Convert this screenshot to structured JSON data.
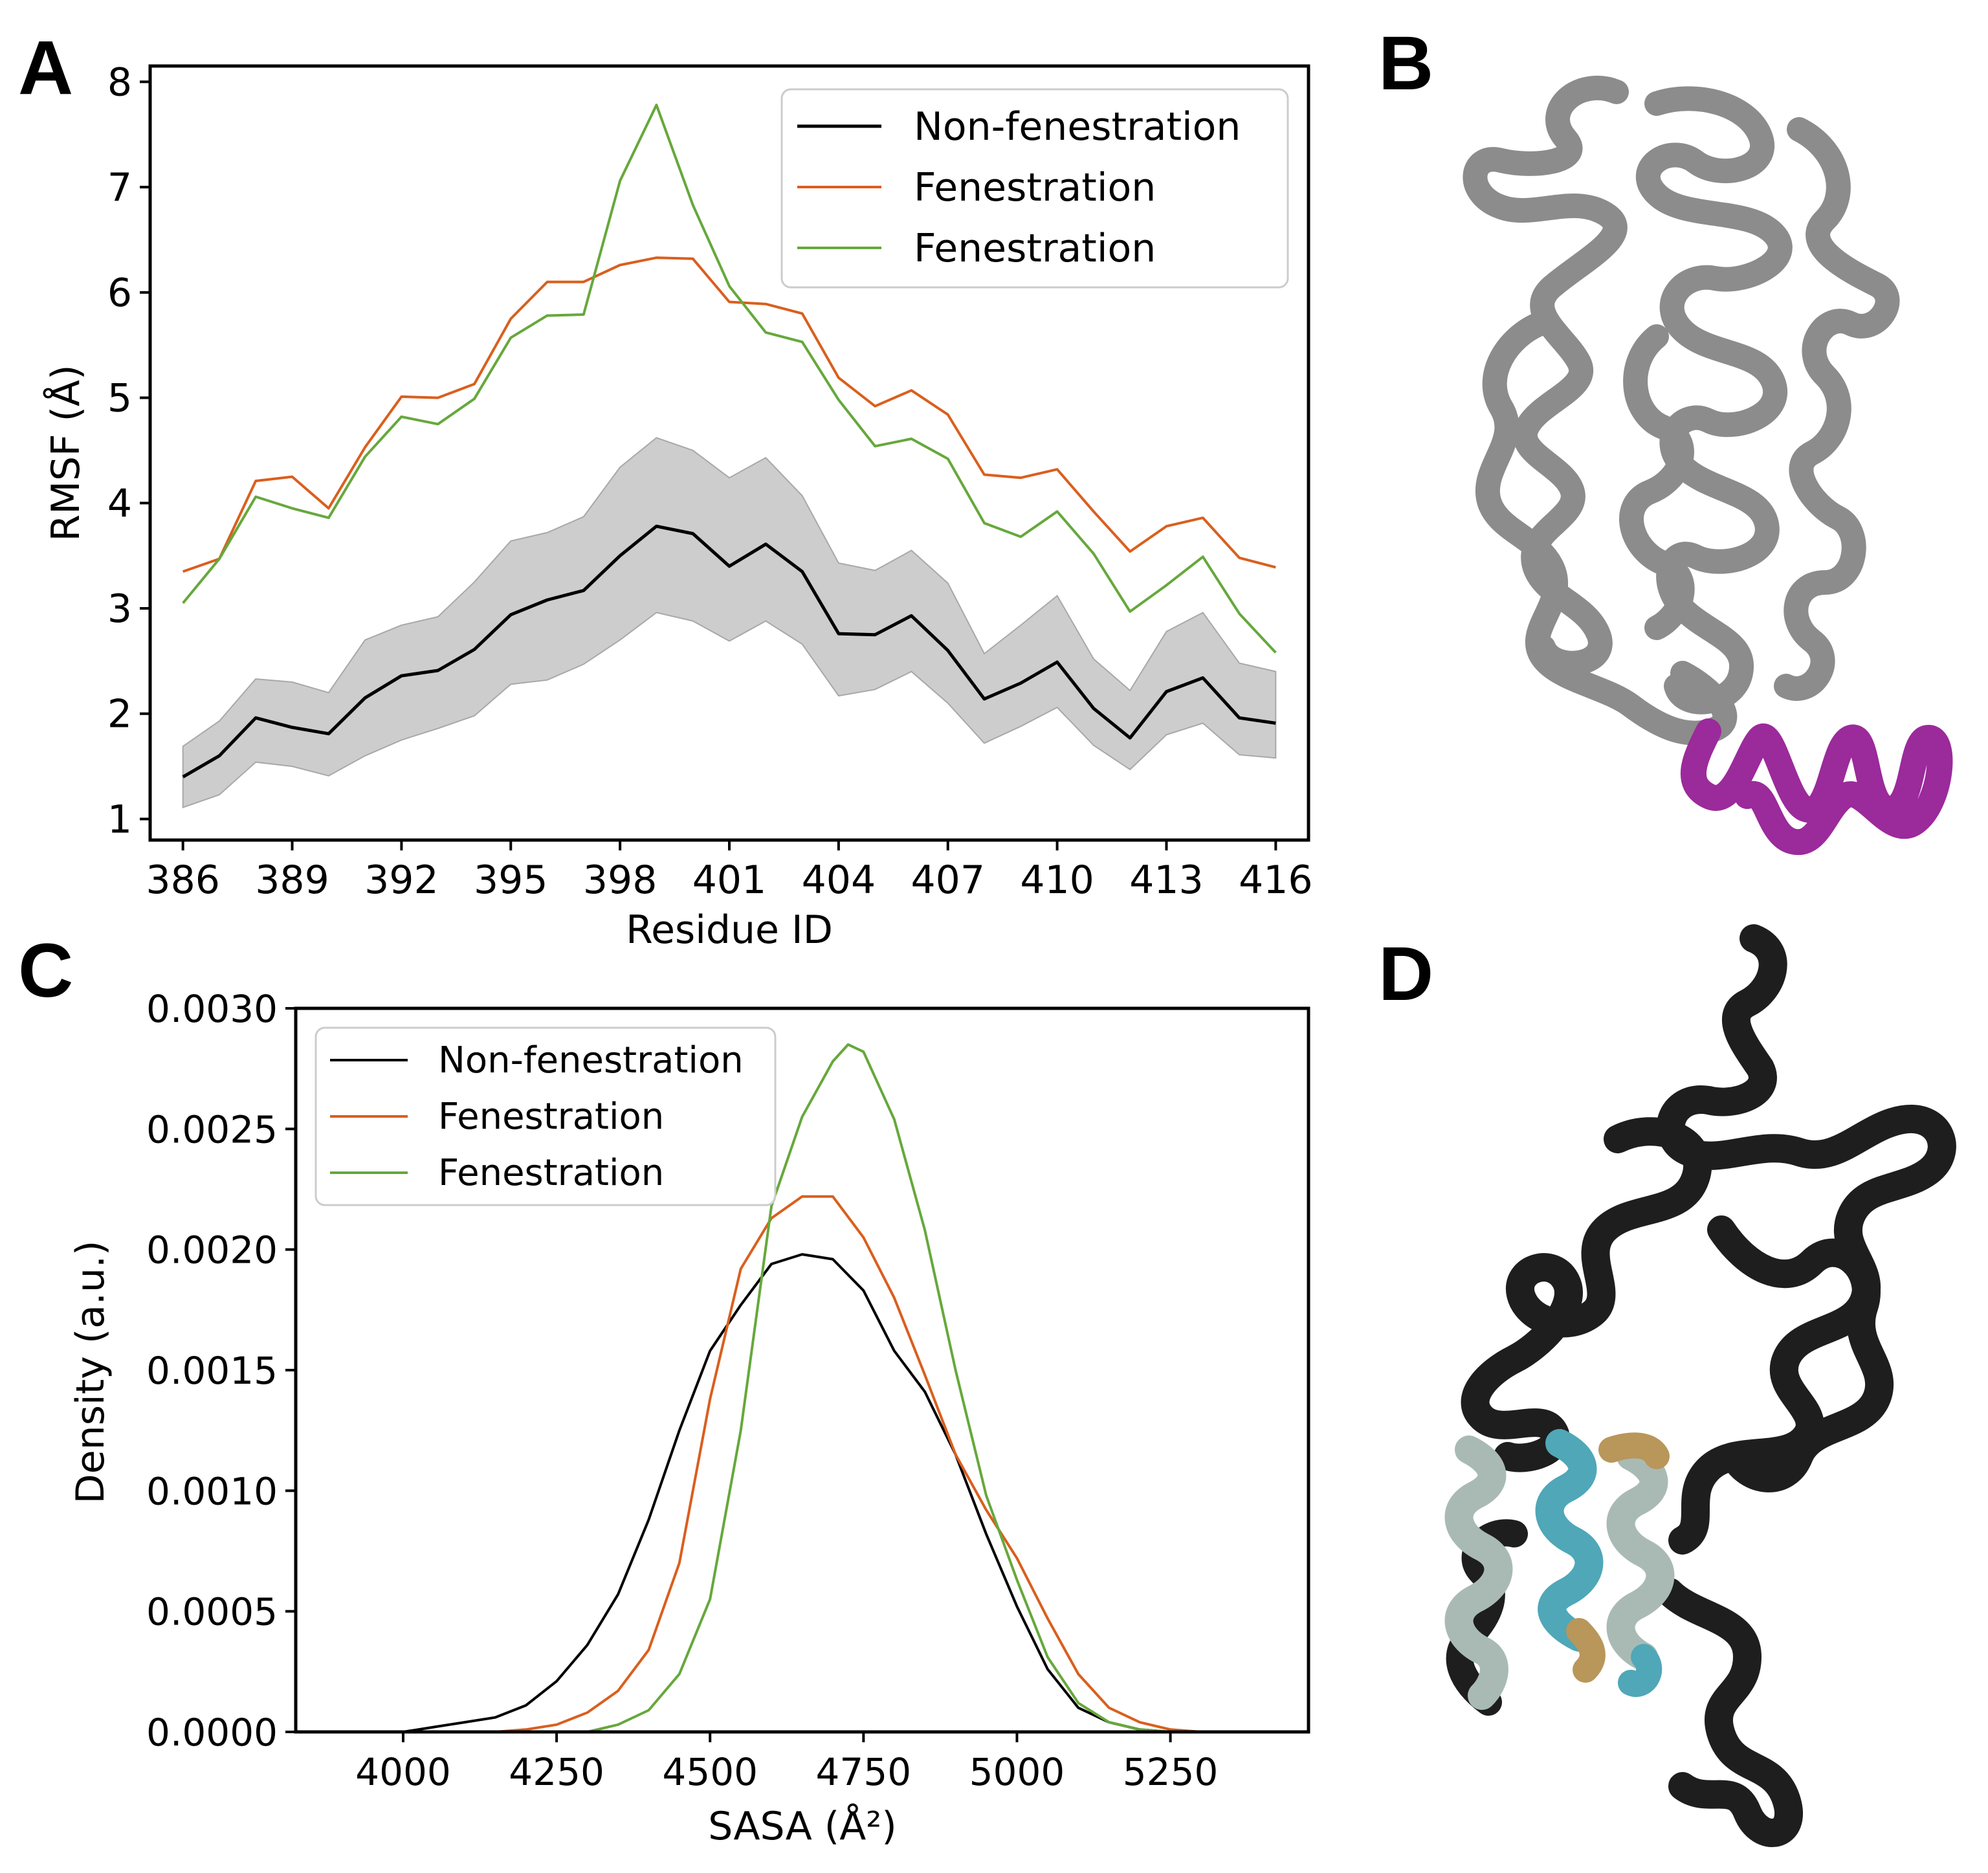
{
  "panels": {
    "a": {
      "letter": "A"
    },
    "b": {
      "letter": "B"
    },
    "c": {
      "letter": "C"
    },
    "d": {
      "letter": "D"
    }
  },
  "colors": {
    "non_fenestration": "#000000",
    "fenestration_1": "#d95f1e",
    "fenestration_2": "#66a83c",
    "band": "#c8c8c8",
    "protein_b_body": "#8c8c8c",
    "protein_b_highlight": "#9b2a9b",
    "protein_d_body": "#1e1e1e",
    "protein_d_helix_light": "#a9bab4",
    "protein_d_helix_cyan": "#4fa7b8",
    "protein_d_helix_tan": "#b9965a"
  },
  "chart_data": [
    {
      "panel": "A",
      "type": "line",
      "title": "",
      "xlabel": "Residue ID",
      "ylabel": "RMSF (Å)",
      "xlim": [
        385.1,
        416.9
      ],
      "ylim": [
        0.8,
        8.15
      ],
      "xticks": [
        386,
        389,
        392,
        395,
        398,
        401,
        404,
        407,
        410,
        413,
        416
      ],
      "yticks": [
        1,
        2,
        3,
        4,
        5,
        6,
        7,
        8
      ],
      "grid": false,
      "legend": "top-right",
      "x": [
        386,
        387,
        388,
        389,
        390,
        391,
        392,
        393,
        394,
        395,
        396,
        397,
        398,
        399,
        400,
        401,
        402,
        403,
        404,
        405,
        406,
        407,
        408,
        409,
        410,
        411,
        412,
        413,
        414,
        415,
        416
      ],
      "series": [
        {
          "name": "Non-fenestration",
          "color": "#000000",
          "values": [
            1.4,
            1.6,
            1.96,
            1.87,
            1.81,
            2.15,
            2.36,
            2.41,
            2.61,
            2.94,
            3.08,
            3.17,
            3.5,
            3.78,
            3.71,
            3.4,
            3.61,
            3.35,
            2.76,
            2.75,
            2.93,
            2.6,
            2.14,
            2.29,
            2.49,
            2.05,
            1.77,
            2.21,
            2.34,
            1.96,
            1.91
          ],
          "band_upper": [
            1.69,
            1.93,
            2.33,
            2.3,
            2.2,
            2.7,
            2.84,
            2.92,
            3.25,
            3.64,
            3.72,
            3.87,
            4.34,
            4.62,
            4.5,
            4.24,
            4.43,
            4.07,
            3.43,
            3.36,
            3.55,
            3.24,
            2.57,
            2.84,
            3.12,
            2.52,
            2.22,
            2.78,
            2.96,
            2.48,
            2.4
          ],
          "band_lower": [
            1.11,
            1.23,
            1.54,
            1.5,
            1.41,
            1.6,
            1.75,
            1.86,
            1.98,
            2.28,
            2.32,
            2.47,
            2.7,
            2.96,
            2.88,
            2.69,
            2.88,
            2.66,
            2.17,
            2.23,
            2.4,
            2.1,
            1.72,
            1.88,
            2.06,
            1.7,
            1.47,
            1.8,
            1.91,
            1.61,
            1.58
          ]
        },
        {
          "name": "Fenestration",
          "color": "#d95f1e",
          "values": [
            3.35,
            3.47,
            4.21,
            4.25,
            3.95,
            4.53,
            5.01,
            5.0,
            5.13,
            5.75,
            6.1,
            6.1,
            6.26,
            6.33,
            6.32,
            5.91,
            5.89,
            5.8,
            5.19,
            4.92,
            5.07,
            4.84,
            4.27,
            4.24,
            4.32,
            3.92,
            3.54,
            3.78,
            3.86,
            3.48,
            3.39
          ]
        },
        {
          "name": "Fenestration",
          "color": "#66a83c",
          "values": [
            3.05,
            3.47,
            4.06,
            3.95,
            3.86,
            4.44,
            4.82,
            4.75,
            4.99,
            5.57,
            5.78,
            5.79,
            7.06,
            7.78,
            6.83,
            6.06,
            5.62,
            5.53,
            4.98,
            4.54,
            4.61,
            4.42,
            3.81,
            3.68,
            3.92,
            3.52,
            2.97,
            3.22,
            3.49,
            2.95,
            2.58
          ]
        }
      ]
    },
    {
      "panel": "C",
      "type": "line",
      "title": "",
      "xlabel": "SASA (Å²)",
      "ylabel": "Density (a.u.)",
      "xlim": [
        3825,
        5475
      ],
      "ylim": [
        0,
        0.003
      ],
      "xticks": [
        4000,
        4250,
        4500,
        4750,
        5000,
        5250
      ],
      "yticks": [
        "0.0000",
        "0.0005",
        "0.0010",
        "0.0015",
        "0.0020",
        "0.0025",
        "0.0030"
      ],
      "grid": false,
      "legend": "top-left",
      "series": [
        {
          "name": "Non-fenestration",
          "color": "#000000",
          "x": [
            4000,
            4050,
            4100,
            4150,
            4200,
            4250,
            4300,
            4350,
            4400,
            4450,
            4500,
            4550,
            4600,
            4650,
            4700,
            4750,
            4800,
            4850,
            4900,
            4950,
            5000,
            5050,
            5100,
            5150,
            5200,
            5250,
            5300,
            5350,
            5400
          ],
          "y": [
            0.0,
            2e-05,
            4e-05,
            6e-05,
            0.00011,
            0.00021,
            0.00036,
            0.00057,
            0.00088,
            0.00125,
            0.00158,
            0.00177,
            0.00194,
            0.00198,
            0.00196,
            0.00183,
            0.00158,
            0.00141,
            0.00115,
            0.00082,
            0.00052,
            0.00026,
            0.0001,
            4e-05,
            1e-05,
            0.0,
            0.0,
            0.0,
            0.0
          ]
        },
        {
          "name": "Fenestration",
          "color": "#d95f1e",
          "x": [
            4150,
            4200,
            4250,
            4300,
            4350,
            4400,
            4450,
            4500,
            4550,
            4600,
            4650,
            4700,
            4750,
            4800,
            4850,
            4900,
            4950,
            5000,
            5050,
            5100,
            5150,
            5200,
            5250,
            5300,
            5350,
            5400
          ],
          "y": [
            0.0,
            1e-05,
            3e-05,
            8e-05,
            0.00017,
            0.00034,
            0.0007,
            0.00138,
            0.00192,
            0.00213,
            0.00222,
            0.00222,
            0.00205,
            0.0018,
            0.00148,
            0.00115,
            0.00092,
            0.00072,
            0.00047,
            0.00024,
            0.0001,
            4e-05,
            1e-05,
            0.0,
            0.0,
            0.0
          ]
        },
        {
          "name": "Fenestration",
          "color": "#66a83c",
          "x": [
            4300,
            4350,
            4400,
            4450,
            4500,
            4550,
            4600,
            4650,
            4700,
            4725,
            4750,
            4800,
            4850,
            4900,
            4950,
            5000,
            5050,
            5100,
            5150,
            5200,
            5250,
            5300
          ],
          "y": [
            0.0,
            3e-05,
            9e-05,
            0.00024,
            0.00055,
            0.00125,
            0.00218,
            0.00255,
            0.00278,
            0.00285,
            0.00282,
            0.00254,
            0.00208,
            0.0015,
            0.00098,
            0.00063,
            0.00031,
            0.00012,
            4e-05,
            1e-05,
            0.0,
            0.0
          ]
        }
      ]
    }
  ]
}
